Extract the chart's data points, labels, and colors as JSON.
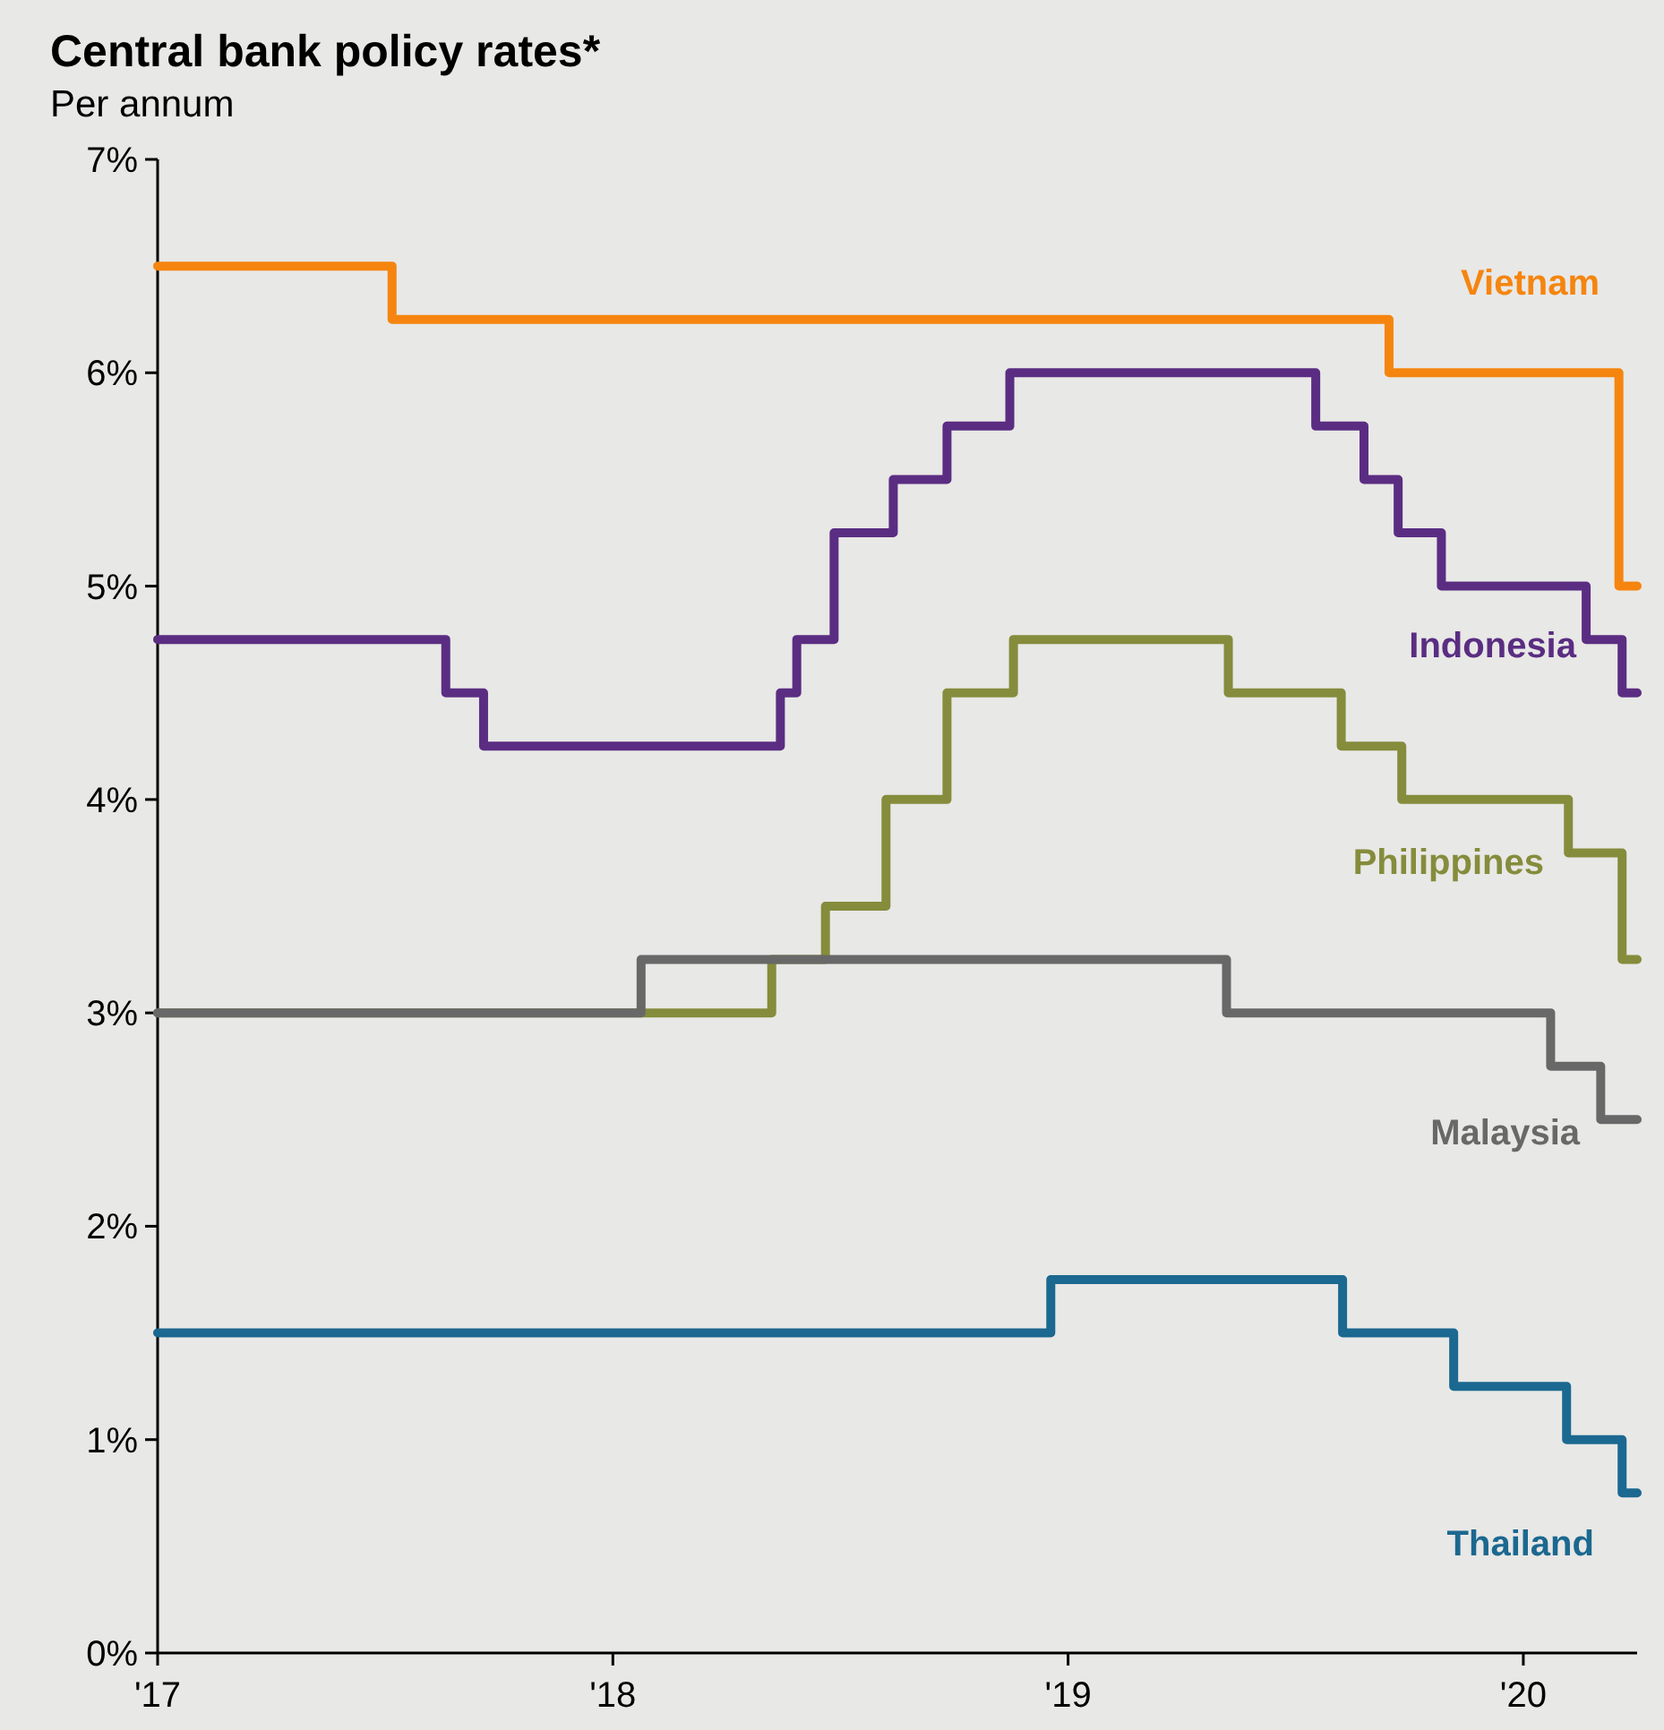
{
  "chart_data": {
    "type": "step",
    "title": "Central bank policy rates*",
    "subtitle": "Per annum",
    "xlim": [
      2017,
      2020.25
    ],
    "xticks": [
      {
        "value": 2017,
        "label": "'17"
      },
      {
        "value": 2018,
        "label": "'18"
      },
      {
        "value": 2019,
        "label": "'19"
      },
      {
        "value": 2020,
        "label": "'20"
      }
    ],
    "ylim": [
      0,
      7
    ],
    "yticks": [
      {
        "value": 0,
        "label": "0%"
      },
      {
        "value": 1,
        "label": "1%"
      },
      {
        "value": 2,
        "label": "2%"
      },
      {
        "value": 3,
        "label": "3%"
      },
      {
        "value": 4,
        "label": "4%"
      },
      {
        "value": 5,
        "label": "5%"
      },
      {
        "value": 6,
        "label": "6%"
      },
      {
        "value": 7,
        "label": "7%"
      }
    ],
    "grid": false,
    "marker": "none",
    "line_style": "solid",
    "series": [
      {
        "name": "Vietnam",
        "color": "#f5850f",
        "x": [
          2017,
          2017.515,
          2019.705,
          2020.21,
          2020.25
        ],
        "values": [
          6.5,
          6.25,
          6.0,
          5.0,
          5.0
        ]
      },
      {
        "name": "Indonesia",
        "color": "#5a2d82",
        "x": [
          2017,
          2017.633,
          2017.716,
          2018.368,
          2018.404,
          2018.486,
          2018.616,
          2018.734,
          2018.872,
          2019.544,
          2019.65,
          2019.725,
          2019.82,
          2020.138,
          2020.217,
          2020.25
        ],
        "values": [
          4.75,
          4.5,
          4.25,
          4.5,
          4.75,
          5.25,
          5.5,
          5.75,
          6.0,
          5.75,
          5.5,
          5.25,
          5.0,
          4.75,
          4.5,
          4.5
        ]
      },
      {
        "name": "Philippines",
        "color": "#858c3c",
        "x": [
          2017,
          2018.349,
          2018.467,
          2018.6,
          2018.734,
          2018.88,
          2019.352,
          2019.6,
          2019.733,
          2020.099,
          2020.217,
          2020.25
        ],
        "values": [
          3.0,
          3.25,
          3.5,
          4.0,
          4.5,
          4.75,
          4.5,
          4.25,
          4.0,
          3.75,
          3.25,
          3.25
        ]
      },
      {
        "name": "Malaysia",
        "color": "#686868",
        "x": [
          2017,
          2018.062,
          2019.348,
          2020.06,
          2020.17,
          2020.25
        ],
        "values": [
          3.0,
          3.25,
          3.0,
          2.75,
          2.5,
          2.5
        ]
      },
      {
        "name": "Thailand",
        "color": "#1b6890",
        "x": [
          2017,
          2018.962,
          2019.603,
          2019.847,
          2020.095,
          2020.217,
          2020.25
        ],
        "values": [
          1.5,
          1.75,
          1.5,
          1.25,
          1.0,
          0.75,
          0.75
        ]
      }
    ]
  }
}
